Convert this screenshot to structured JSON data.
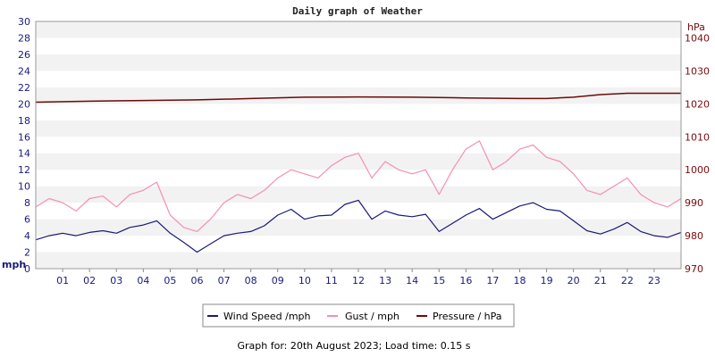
{
  "chart_data": {
    "type": "line",
    "title": "Daily graph of Weather",
    "ylabel_left": "mph",
    "ylabel_right": "hPa",
    "ylim_left": [
      0,
      30
    ],
    "yticks_left": [
      "0",
      "2",
      "4",
      "6",
      "8",
      "10",
      "12",
      "14",
      "16",
      "18",
      "20",
      "22",
      "24",
      "26",
      "28",
      "30"
    ],
    "ylim_right": [
      970,
      1045
    ],
    "yticks_right": [
      "970",
      "980",
      "990",
      "1000",
      "1010",
      "1020",
      "1030",
      "1040"
    ],
    "xlim": [
      0,
      24
    ],
    "xticks": [
      "01",
      "02",
      "03",
      "04",
      "05",
      "06",
      "07",
      "08",
      "09",
      "10",
      "11",
      "12",
      "13",
      "14",
      "15",
      "16",
      "17",
      "18",
      "19",
      "20",
      "21",
      "22",
      "23"
    ],
    "grid": "horizontal bands",
    "legend_position": "bottom",
    "series": [
      {
        "name": "Wind Speed /mph",
        "axis": "left",
        "color": "#1a1a7a",
        "x": [
          0,
          0.5,
          1,
          1.5,
          2,
          2.5,
          3,
          3.5,
          4,
          4.5,
          5,
          5.5,
          6,
          6.5,
          7,
          7.5,
          8,
          8.5,
          9,
          9.5,
          10,
          10.5,
          11,
          11.5,
          12,
          12.5,
          13,
          13.5,
          14,
          14.5,
          15,
          15.5,
          16,
          16.5,
          17,
          17.5,
          18,
          18.5,
          19,
          19.5,
          20,
          20.5,
          21,
          21.5,
          22,
          22.5,
          23,
          23.5,
          24
        ],
        "values": [
          3.5,
          4.0,
          4.3,
          4.0,
          4.4,
          4.6,
          4.3,
          5.0,
          5.3,
          5.8,
          4.3,
          3.2,
          2.0,
          3.0,
          4.0,
          4.3,
          4.5,
          5.2,
          6.5,
          7.2,
          6.0,
          6.4,
          6.5,
          7.8,
          8.3,
          6.0,
          7.0,
          6.5,
          6.3,
          6.6,
          4.5,
          5.5,
          6.5,
          7.3,
          6.0,
          6.8,
          7.6,
          8.0,
          7.2,
          7.0,
          5.8,
          4.6,
          4.2,
          4.8,
          5.6,
          4.5,
          4.0,
          3.8,
          4.4
        ]
      },
      {
        "name": "Gust / mph",
        "axis": "left",
        "color": "#f48fb1",
        "x": [
          0,
          0.5,
          1,
          1.5,
          2,
          2.5,
          3,
          3.5,
          4,
          4.5,
          5,
          5.5,
          6,
          6.5,
          7,
          7.5,
          8,
          8.5,
          9,
          9.5,
          10,
          10.5,
          11,
          11.5,
          12,
          12.5,
          13,
          13.5,
          14,
          14.5,
          15,
          15.5,
          16,
          16.5,
          17,
          17.5,
          18,
          18.5,
          19,
          19.5,
          20,
          20.5,
          21,
          21.5,
          22,
          22.5,
          23,
          23.5,
          24
        ],
        "values": [
          7.5,
          8.5,
          8.0,
          7.0,
          8.5,
          8.8,
          7.5,
          9.0,
          9.5,
          10.5,
          6.5,
          5.0,
          4.5,
          6.0,
          8.0,
          9.0,
          8.5,
          9.5,
          11.0,
          12.0,
          11.5,
          11.0,
          12.5,
          13.5,
          14.0,
          11.0,
          13.0,
          12.0,
          11.5,
          12.0,
          9.0,
          12.0,
          14.5,
          15.5,
          12.0,
          13.0,
          14.5,
          15.0,
          13.5,
          13.0,
          11.5,
          9.5,
          9.0,
          10.0,
          11.0,
          9.0,
          8.0,
          7.5,
          8.5
        ]
      },
      {
        "name": "Pressure / hPa",
        "axis": "right",
        "color": "#6b0a0a",
        "x": [
          0,
          2,
          4,
          6,
          8,
          10,
          12,
          14,
          16,
          18,
          19,
          20,
          21,
          22,
          24
        ],
        "values": [
          1020.5,
          1020.8,
          1021.0,
          1021.2,
          1021.6,
          1022.0,
          1022.1,
          1022.0,
          1021.8,
          1021.6,
          1021.6,
          1022.0,
          1022.8,
          1023.2,
          1023.2
        ]
      }
    ]
  },
  "footer": {
    "text": "Graph for: 20th August 2023; Load time: 0.15 s"
  }
}
